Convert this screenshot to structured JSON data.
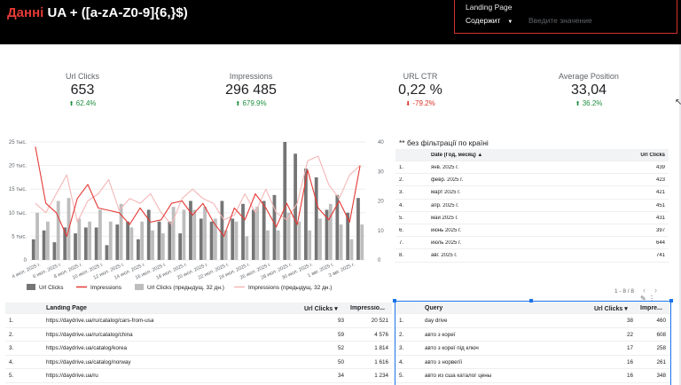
{
  "header": {
    "title_red": "Данні",
    "title_rest": " UA + ([a-zA-Z0-9]{6,}$)",
    "filter": {
      "label": "Landing Page",
      "operator": "Содержит",
      "placeholder": "Введите значение"
    }
  },
  "kpis": [
    {
      "label": "Url Clicks",
      "value": "653",
      "delta": "62.4%",
      "direction": "up"
    },
    {
      "label": "Impressions",
      "value": "296 485",
      "delta": "679.9%",
      "direction": "up"
    },
    {
      "label": "URL CTR",
      "value": "0,22 %",
      "delta": "-79.2%",
      "direction": "down"
    },
    {
      "label": "Average Position",
      "value": "33,04",
      "delta": "36.2%",
      "direction": "up"
    }
  ],
  "colors": {
    "bar_current": "#757575",
    "bar_previous": "#bdbdbd",
    "line_current": "#e53935",
    "line_previous": "#f4b6b6",
    "up": "#1e8e3e",
    "down": "#d93025",
    "header_bg": "#000000",
    "accent_red": "#e53935",
    "selection": "#1a73e8"
  },
  "chart_data": {
    "type": "bar",
    "title": "",
    "y_left_ticks": [
      "0",
      "5 тыс.",
      "10 тыс.",
      "15 тыс.",
      "20 тыс.",
      "25 тыс."
    ],
    "y_right_ticks": [
      "0",
      "10",
      "20",
      "30",
      "40"
    ],
    "ylim_left": [
      0,
      25000
    ],
    "ylim_right": [
      0,
      40
    ],
    "x_tick_labels": [
      "4 июл. 2025 г.",
      "6 июл. 2025 г.",
      "8 июл. 2025 г.",
      "10 июл. 2025 г.",
      "12 июл. 2025 г.",
      "14 июл. 2025 г.",
      "16 июл. 2025 г.",
      "18 июл. 2025 г.",
      "20 июл. 2025 г.",
      "22 июл. 2025 г.",
      "24 июл. 2025 г.",
      "26 июл. 2025 г.",
      "28 июл. 2025 г.",
      "30 июл. 2025 г.",
      "1 авг. 2025 г.",
      "3 авг. 2025 г."
    ],
    "series": [
      {
        "name": "Url Clicks",
        "kind": "bar",
        "axis": "right",
        "values": [
          7,
          10,
          6,
          11,
          9,
          11,
          11,
          5,
          12,
          13,
          7,
          17,
          13,
          13,
          9,
          20,
          14,
          13,
          20,
          14,
          19,
          17,
          20,
          22,
          40,
          36,
          31,
          28,
          17,
          22,
          16,
          21
        ]
      },
      {
        "name": "Impressions",
        "kind": "line",
        "axis": "left",
        "values": [
          24000,
          12000,
          10000,
          5000,
          13000,
          16000,
          11000,
          10500,
          10000,
          7500,
          11000,
          8000,
          8500,
          12000,
          12500,
          9500,
          12000,
          8000,
          5000,
          11000,
          8500,
          14000,
          11000,
          7000,
          12000,
          7500,
          19000,
          11000,
          8500,
          12500,
          8000,
          20000
        ]
      },
      {
        "name": "Url Clicks (предыдущ. 32 дн.)",
        "kind": "bar",
        "axis": "right",
        "values": [
          16,
          13,
          20,
          21,
          14,
          13,
          17,
          13,
          19,
          11,
          13,
          10,
          9,
          18,
          17,
          17,
          18,
          14,
          10,
          13,
          8,
          18,
          10,
          10,
          16,
          13,
          10,
          14,
          19,
          12,
          7,
          12
        ]
      },
      {
        "name": "Impressions (предыдущ. 32 дн.)",
        "kind": "line",
        "axis": "left",
        "values": [
          12000,
          10000,
          14000,
          18000,
          8000,
          12500,
          14000,
          17000,
          10500,
          13000,
          12000,
          14000,
          10000,
          7500,
          13000,
          15000,
          13000,
          12000,
          8500,
          9500,
          14000,
          10000,
          15000,
          10000,
          8500,
          12000,
          21000,
          22000,
          16000,
          13000,
          18000,
          20000
        ]
      }
    ]
  },
  "monthly_table": {
    "note": "** без фільтрації по країні",
    "headers": {
      "date": "Date (Год, месяц)",
      "sort": "▲",
      "clicks": "Url Clicks"
    },
    "rows": [
      {
        "n": "1.",
        "date": "янв. 2025 г.",
        "clicks": "439"
      },
      {
        "n": "2.",
        "date": "февр. 2025 г.",
        "clicks": "423"
      },
      {
        "n": "3.",
        "date": "март 2025 г.",
        "clicks": "421"
      },
      {
        "n": "4.",
        "date": "апр. 2025 г.",
        "clicks": "451"
      },
      {
        "n": "5.",
        "date": "май 2025 г.",
        "clicks": "431"
      },
      {
        "n": "6.",
        "date": "июнь 2025 г.",
        "clicks": "397"
      },
      {
        "n": "7.",
        "date": "июль 2025 г.",
        "clicks": "644"
      },
      {
        "n": "8.",
        "date": "авг. 2025 г.",
        "clicks": "741"
      }
    ],
    "pager": "1 - 8 / 8"
  },
  "landing_table": {
    "headers": {
      "page": "Landing Page",
      "clicks": "Url Clicks ▾",
      "impressions": "Impressio..."
    },
    "rows": [
      {
        "n": "1.",
        "page": "https://daydrive.ua/ru/catalog/cars-from-usa",
        "clicks": "93",
        "impr": "20 521"
      },
      {
        "n": "2.",
        "page": "https://daydrive.ua/ru/catalog/china",
        "clicks": "59",
        "impr": "4 576"
      },
      {
        "n": "3.",
        "page": "https://daydrive.ua/catalog/korea",
        "clicks": "52",
        "impr": "1 814"
      },
      {
        "n": "4.",
        "page": "https://daydrive.ua/catalog/norway",
        "clicks": "50",
        "impr": "1 616"
      },
      {
        "n": "5.",
        "page": "https://daydrive.ua/ru",
        "clicks": "34",
        "impr": "1 234"
      }
    ]
  },
  "query_table": {
    "headers": {
      "query": "Query",
      "clicks": "Url Clicks ▾",
      "impressions": "Impre..."
    },
    "rows": [
      {
        "n": "1.",
        "query": "day drive",
        "clicks": "38",
        "impr": "460"
      },
      {
        "n": "2.",
        "query": "авто з кореї",
        "clicks": "22",
        "impr": "608"
      },
      {
        "n": "3.",
        "query": "авто з кореї під ключ",
        "clicks": "17",
        "impr": "258"
      },
      {
        "n": "4.",
        "query": "авто з норвегії",
        "clicks": "16",
        "impr": "261"
      },
      {
        "n": "5.",
        "query": "авто из сша каталог цены",
        "clicks": "16",
        "impr": "348"
      }
    ]
  }
}
